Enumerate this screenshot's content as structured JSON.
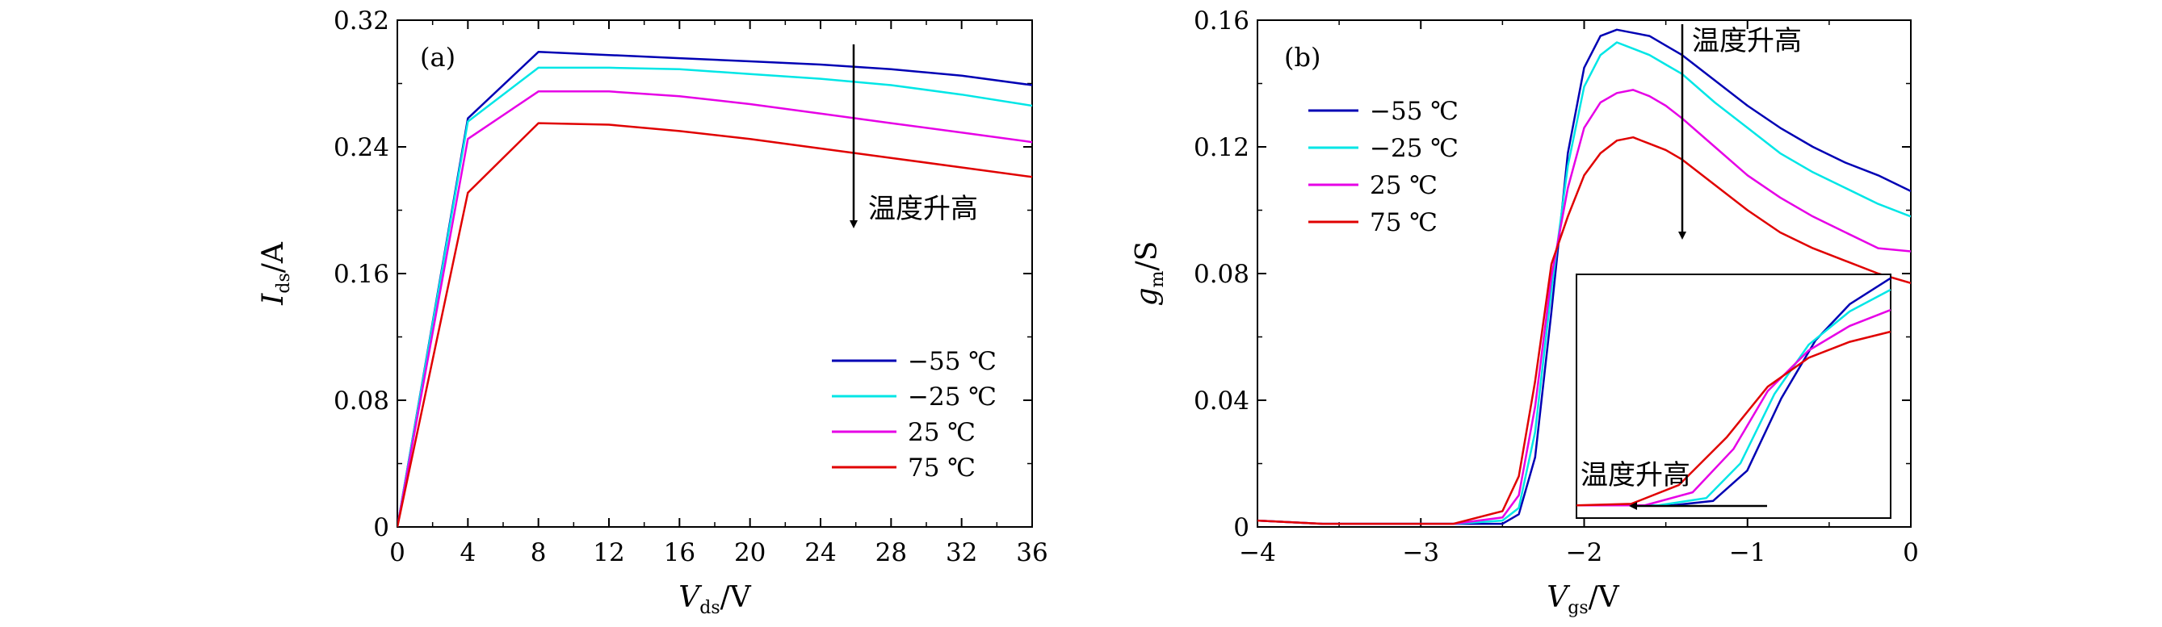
{
  "chart_data": [
    {
      "type": "line",
      "panel_label": "(a)",
      "xlabel": {
        "symbol": "V",
        "sub": "ds",
        "unit": "/V"
      },
      "ylabel": {
        "symbol": "I",
        "sub": "ds",
        "unit": "/A"
      },
      "xlim": [
        0,
        36
      ],
      "ylim": [
        0,
        0.32
      ],
      "xticks": [
        0,
        4,
        8,
        12,
        16,
        20,
        24,
        28,
        32,
        36
      ],
      "yticks": [
        0,
        0.08,
        0.16,
        0.24,
        0.32
      ],
      "ytick_labels": [
        "0",
        "0.08",
        "0.16",
        "0.24",
        "0.32"
      ],
      "legend_position": "bottom-right",
      "annotation": "温度升高",
      "series": [
        {
          "name": "−55 ℃",
          "color": "#0000b4",
          "x": [
            0,
            4,
            8,
            12,
            16,
            20,
            24,
            28,
            32,
            36
          ],
          "y": [
            0,
            0.258,
            0.3,
            0.298,
            0.296,
            0.294,
            0.292,
            0.289,
            0.285,
            0.279
          ]
        },
        {
          "name": "−25 ℃",
          "color": "#00e6e6",
          "x": [
            0,
            4,
            8,
            12,
            16,
            20,
            24,
            28,
            32,
            36
          ],
          "y": [
            0,
            0.256,
            0.29,
            0.29,
            0.289,
            0.286,
            0.283,
            0.279,
            0.273,
            0.266
          ]
        },
        {
          "name": "25 ℃",
          "color": "#e600e6",
          "x": [
            0,
            4,
            8,
            12,
            16,
            20,
            24,
            28,
            32,
            36
          ],
          "y": [
            0,
            0.245,
            0.275,
            0.275,
            0.272,
            0.267,
            0.261,
            0.255,
            0.249,
            0.243
          ]
        },
        {
          "name": "75 ℃",
          "color": "#e00000",
          "x": [
            0,
            4,
            8,
            12,
            16,
            20,
            24,
            28,
            32,
            36
          ],
          "y": [
            0,
            0.211,
            0.255,
            0.254,
            0.25,
            0.245,
            0.239,
            0.233,
            0.227,
            0.221
          ]
        }
      ]
    },
    {
      "type": "line",
      "panel_label": "(b)",
      "xlabel": {
        "symbol": "V",
        "sub": "gs",
        "unit": "/V"
      },
      "ylabel": {
        "symbol": "g",
        "sub": "m",
        "unit": "/S"
      },
      "xlim": [
        -4,
        0
      ],
      "ylim": [
        0,
        0.16
      ],
      "xticks": [
        -4,
        -3,
        -2,
        -1,
        0
      ],
      "xtick_labels": [
        "−4",
        "−3",
        "−2",
        "−1",
        "0"
      ],
      "yticks": [
        0,
        0.04,
        0.08,
        0.12,
        0.16
      ],
      "ytick_labels": [
        "0",
        "0.04",
        "0.08",
        "0.12",
        "0.16"
      ],
      "legend_position": "upper-left",
      "annotation": "温度升高",
      "inset_annotation": "温度升高",
      "series": [
        {
          "name": "−55 ℃",
          "color": "#0000b4",
          "x": [
            -4,
            -3.6,
            -3.2,
            -2.8,
            -2.5,
            -2.4,
            -2.3,
            -2.2,
            -2.1,
            -2.0,
            -1.9,
            -1.8,
            -1.7,
            -1.6,
            -1.5,
            -1.4,
            -1.2,
            -1.0,
            -0.8,
            -0.6,
            -0.4,
            -0.2,
            0
          ],
          "y": [
            0.002,
            0.001,
            0.001,
            0.001,
            0.001,
            0.004,
            0.022,
            0.068,
            0.118,
            0.145,
            0.155,
            0.157,
            0.156,
            0.155,
            0.152,
            0.149,
            0.141,
            0.133,
            0.126,
            0.12,
            0.115,
            0.111,
            0.106
          ]
        },
        {
          "name": "−25 ℃",
          "color": "#00e6e6",
          "x": [
            -4,
            -3.6,
            -3.2,
            -2.8,
            -2.5,
            -2.4,
            -2.3,
            -2.2,
            -2.1,
            -2.0,
            -1.9,
            -1.8,
            -1.7,
            -1.6,
            -1.5,
            -1.4,
            -1.2,
            -1.0,
            -0.8,
            -0.6,
            -0.4,
            -0.2,
            0
          ],
          "y": [
            0.002,
            0.001,
            0.001,
            0.001,
            0.002,
            0.006,
            0.03,
            0.075,
            0.114,
            0.139,
            0.149,
            0.153,
            0.151,
            0.149,
            0.146,
            0.143,
            0.134,
            0.126,
            0.118,
            0.112,
            0.107,
            0.102,
            0.098
          ]
        },
        {
          "name": "25 ℃",
          "color": "#e600e6",
          "x": [
            -4,
            -3.6,
            -3.2,
            -2.8,
            -2.5,
            -2.4,
            -2.3,
            -2.2,
            -2.1,
            -2.0,
            -1.9,
            -1.8,
            -1.7,
            -1.6,
            -1.5,
            -1.4,
            -1.2,
            -1.0,
            -0.8,
            -0.6,
            -0.4,
            -0.2,
            0
          ],
          "y": [
            0.002,
            0.001,
            0.001,
            0.001,
            0.003,
            0.01,
            0.038,
            0.079,
            0.107,
            0.126,
            0.134,
            0.137,
            0.138,
            0.136,
            0.133,
            0.129,
            0.12,
            0.111,
            0.104,
            0.098,
            0.093,
            0.088,
            0.087
          ]
        },
        {
          "name": "75 ℃",
          "color": "#e00000",
          "x": [
            -4,
            -3.6,
            -3.2,
            -2.8,
            -2.5,
            -2.4,
            -2.3,
            -2.2,
            -2.1,
            -2.0,
            -1.9,
            -1.8,
            -1.7,
            -1.6,
            -1.5,
            -1.4,
            -1.2,
            -1.0,
            -0.8,
            -0.6,
            -0.4,
            -0.2,
            0
          ],
          "y": [
            0.002,
            0.001,
            0.001,
            0.001,
            0.005,
            0.016,
            0.046,
            0.083,
            0.098,
            0.111,
            0.118,
            0.122,
            0.123,
            0.121,
            0.119,
            0.116,
            0.108,
            0.1,
            0.093,
            0.088,
            0.084,
            0.08,
            0.077
          ]
        }
      ]
    }
  ]
}
